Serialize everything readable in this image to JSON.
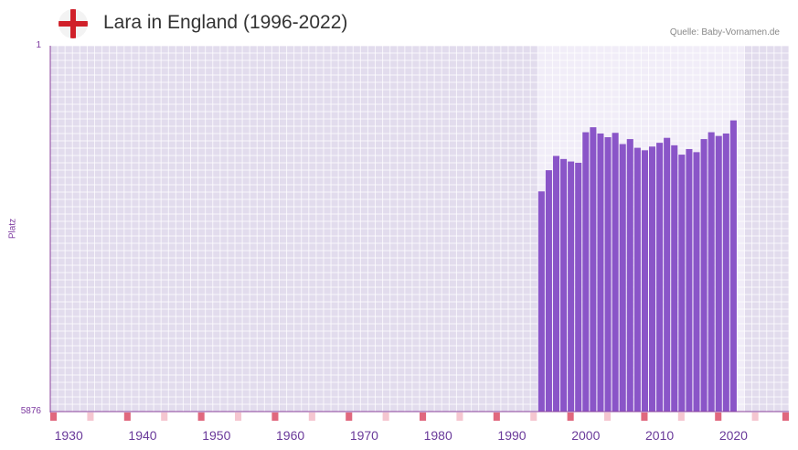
{
  "header": {
    "title": "Lara in England (1996-2022)",
    "source": "Quelle: Baby-Vornamen.de",
    "flag_icon": "england-flag-icon"
  },
  "colors": {
    "bar": "#8a55c8",
    "plot_bg": "#e2dced",
    "highlight_bg": "#f1edf8",
    "axis": "#8a3f9a",
    "tick_strong": "#e0687e",
    "tick_light": "#f5c6d0",
    "label": "#6a3a9a",
    "flag_red": "#d0202a"
  },
  "chart_data": {
    "type": "bar",
    "title": "Lara in England (1996-2022)",
    "xlabel": "",
    "ylabel": "Platz",
    "y_top_label": "1",
    "y_bottom_label": "5876",
    "ylim": [
      5876,
      1
    ],
    "y_axis_inverted": true,
    "grid": true,
    "x_range": [
      1928,
      2028
    ],
    "x_tick_labels": [
      "1930",
      "1940",
      "1950",
      "1960",
      "1970",
      "1980",
      "1990",
      "2000",
      "2010",
      "2020"
    ],
    "x_tick_values": [
      1930,
      1940,
      1950,
      1960,
      1970,
      1980,
      1990,
      2000,
      2010,
      2020
    ],
    "highlight_range": [
      1994,
      2022
    ],
    "categories": [
      1994,
      1995,
      1996,
      1997,
      1998,
      1999,
      2000,
      2001,
      2002,
      2003,
      2004,
      2005,
      2006,
      2007,
      2008,
      2009,
      2010,
      2011,
      2012,
      2013,
      2014,
      2015,
      2016,
      2017,
      2018,
      2019,
      2020
    ],
    "series": [
      {
        "name": "Platz",
        "values": [
          2340,
          2000,
          1770,
          1820,
          1860,
          1880,
          1390,
          1310,
          1410,
          1470,
          1400,
          1580,
          1500,
          1640,
          1680,
          1620,
          1560,
          1480,
          1600,
          1750,
          1660,
          1710,
          1500,
          1390,
          1450,
          1410,
          1200
        ]
      }
    ]
  }
}
